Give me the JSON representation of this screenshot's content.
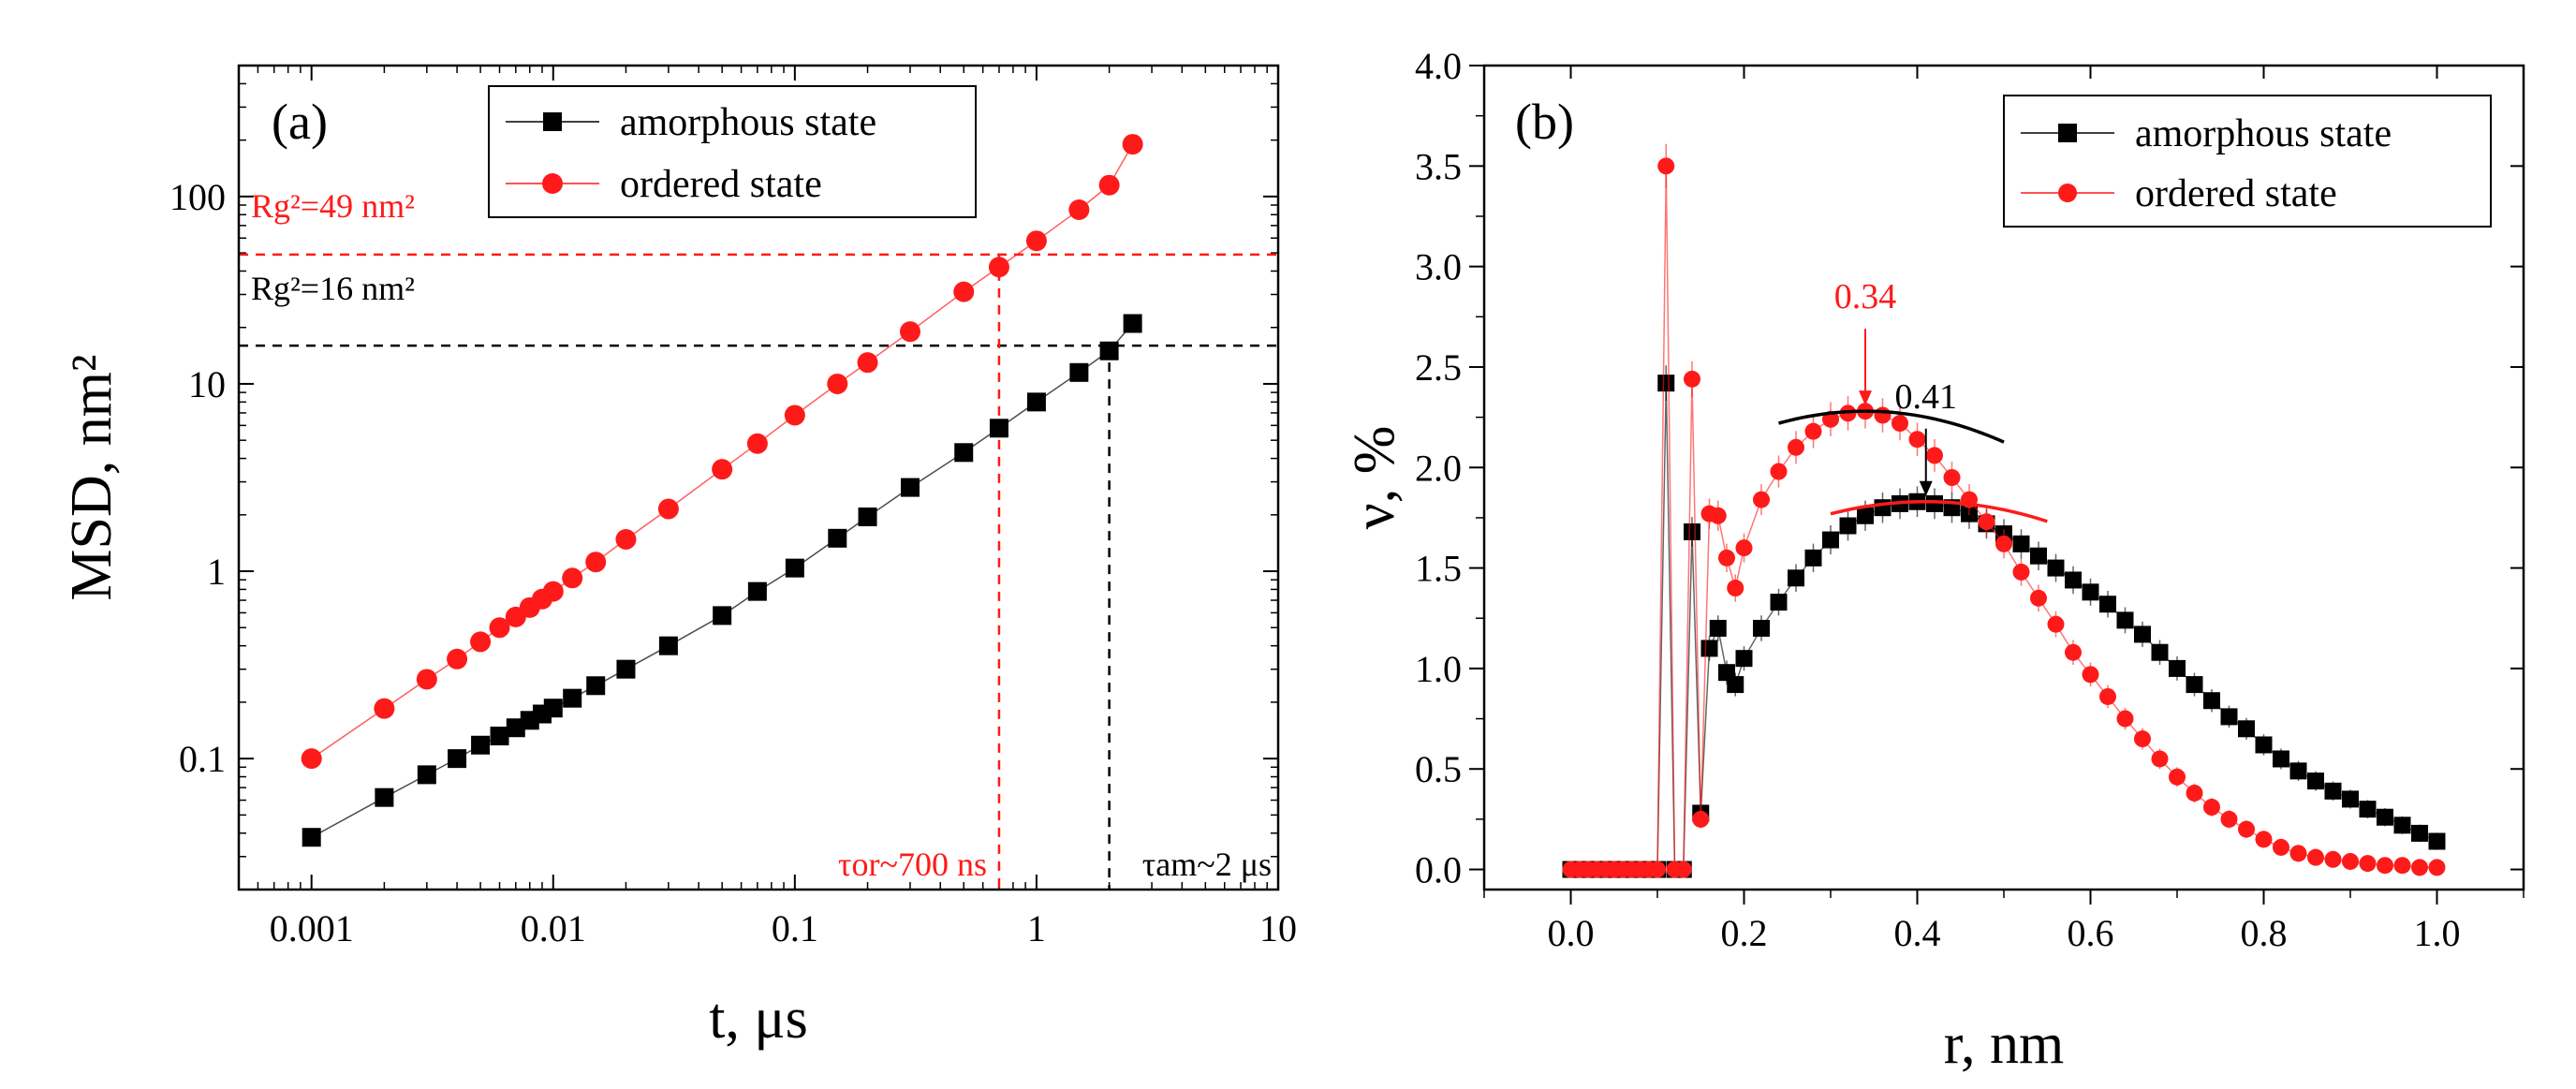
{
  "chart_data": [
    {
      "type": "scatter",
      "panel_label": "(a)",
      "xlabel": "t, μs",
      "ylabel": "MSD, nm²",
      "xscale": "log",
      "yscale": "log",
      "xlim": [
        0.0005,
        10
      ],
      "ylim": [
        0.02,
        500
      ],
      "x_ticks": [
        {
          "value": 0.001,
          "label": "0.001"
        },
        {
          "value": 0.01,
          "label": "0.01"
        },
        {
          "value": 0.1,
          "label": "0.1"
        },
        {
          "value": 1,
          "label": "1"
        },
        {
          "value": 10,
          "label": "10"
        }
      ],
      "y_ticks": [
        {
          "value": 0.1,
          "label": "0.1"
        },
        {
          "value": 1,
          "label": "1"
        },
        {
          "value": 10,
          "label": "10"
        },
        {
          "value": 100,
          "label": "100"
        }
      ],
      "legend_position": "top-right",
      "series": [
        {
          "name": "amorphous state",
          "color": "#000000",
          "marker": "square",
          "x": [
            0.001,
            0.002,
            0.003,
            0.004,
            0.005,
            0.006,
            0.007,
            0.008,
            0.009,
            0.01,
            0.012,
            0.015,
            0.02,
            0.03,
            0.05,
            0.07,
            0.1,
            0.15,
            0.2,
            0.3,
            0.5,
            0.7,
            1.0,
            1.5,
            2.0,
            2.5
          ],
          "y": [
            0.038,
            0.062,
            0.082,
            0.1,
            0.118,
            0.132,
            0.146,
            0.16,
            0.173,
            0.186,
            0.21,
            0.245,
            0.3,
            0.4,
            0.58,
            0.78,
            1.04,
            1.5,
            1.95,
            2.8,
            4.3,
            5.8,
            8.0,
            11.5,
            15.0,
            21.0
          ]
        },
        {
          "name": "ordered state",
          "color": "#ff1a1a",
          "marker": "circle",
          "x": [
            0.001,
            0.002,
            0.003,
            0.004,
            0.005,
            0.006,
            0.007,
            0.008,
            0.009,
            0.01,
            0.012,
            0.015,
            0.02,
            0.03,
            0.05,
            0.07,
            0.1,
            0.15,
            0.2,
            0.3,
            0.5,
            0.7,
            1.0,
            1.5,
            2.0,
            2.5
          ],
          "y": [
            0.1,
            0.185,
            0.265,
            0.34,
            0.42,
            0.5,
            0.57,
            0.64,
            0.71,
            0.78,
            0.92,
            1.12,
            1.48,
            2.15,
            3.5,
            4.8,
            6.8,
            10.0,
            13.0,
            19.0,
            31.0,
            42.0,
            58.0,
            85.0,
            115.0,
            190.0
          ]
        }
      ],
      "reference_lines": [
        {
          "orientation": "horizontal",
          "value": 49,
          "color": "#ff1a1a",
          "label": "Rg²=49 nm²"
        },
        {
          "orientation": "horizontal",
          "value": 16,
          "color": "#000000",
          "label": "Rg²=16 nm²"
        },
        {
          "orientation": "vertical",
          "value": 0.7,
          "color": "#ff1a1a",
          "label": "τor~700 ns"
        },
        {
          "orientation": "vertical",
          "value": 2,
          "color": "#000000",
          "label": "τam~2 μs"
        }
      ]
    },
    {
      "type": "scatter",
      "panel_label": "(b)",
      "xlabel": "r, nm",
      "ylabel": "ν, %",
      "xlim": [
        -0.1,
        1.1
      ],
      "ylim": [
        -0.1,
        4.0
      ],
      "x_ticks": [
        {
          "value": 0.0,
          "label": "0.0"
        },
        {
          "value": 0.2,
          "label": "0.2"
        },
        {
          "value": 0.4,
          "label": "0.4"
        },
        {
          "value": 0.6,
          "label": "0.6"
        },
        {
          "value": 0.8,
          "label": "0.8"
        },
        {
          "value": 1.0,
          "label": "1.0"
        }
      ],
      "y_ticks": [
        {
          "value": 0.0,
          "label": "0.0"
        },
        {
          "value": 0.5,
          "label": "0.5"
        },
        {
          "value": 1.0,
          "label": "1.0"
        },
        {
          "value": 1.5,
          "label": "1.5"
        },
        {
          "value": 2.0,
          "label": "2.0"
        },
        {
          "value": 2.5,
          "label": "2.5"
        },
        {
          "value": 3.0,
          "label": "3.0"
        },
        {
          "value": 3.5,
          "label": "3.5"
        },
        {
          "value": 4.0,
          "label": "4.0"
        }
      ],
      "legend_position": "top-right",
      "series": [
        {
          "name": "amorphous state",
          "color": "#000000",
          "marker": "square",
          "x": [
            0.0,
            0.01,
            0.02,
            0.03,
            0.04,
            0.05,
            0.06,
            0.07,
            0.08,
            0.09,
            0.1,
            0.11,
            0.12,
            0.13,
            0.14,
            0.15,
            0.16,
            0.17,
            0.18,
            0.19,
            0.2,
            0.22,
            0.24,
            0.26,
            0.28,
            0.3,
            0.32,
            0.34,
            0.36,
            0.38,
            0.4,
            0.42,
            0.44,
            0.46,
            0.48,
            0.5,
            0.52,
            0.54,
            0.56,
            0.58,
            0.6,
            0.62,
            0.64,
            0.66,
            0.68,
            0.7,
            0.72,
            0.74,
            0.76,
            0.78,
            0.8,
            0.82,
            0.84,
            0.86,
            0.88,
            0.9,
            0.92,
            0.94,
            0.96,
            0.98,
            1.0
          ],
          "y": [
            0.0,
            0.0,
            0.0,
            0.0,
            0.0,
            0.0,
            0.0,
            0.0,
            0.0,
            0.0,
            0.0,
            2.42,
            0.0,
            0.0,
            1.68,
            0.28,
            1.1,
            1.2,
            0.98,
            0.92,
            1.05,
            1.2,
            1.33,
            1.45,
            1.55,
            1.64,
            1.71,
            1.76,
            1.8,
            1.82,
            1.83,
            1.82,
            1.8,
            1.77,
            1.72,
            1.67,
            1.62,
            1.56,
            1.5,
            1.44,
            1.38,
            1.32,
            1.24,
            1.17,
            1.08,
            1.0,
            0.92,
            0.84,
            0.76,
            0.7,
            0.62,
            0.55,
            0.49,
            0.44,
            0.39,
            0.35,
            0.3,
            0.26,
            0.22,
            0.18,
            0.14
          ]
        },
        {
          "name": "ordered state",
          "color": "#ff1a1a",
          "marker": "circle",
          "x": [
            0.0,
            0.01,
            0.02,
            0.03,
            0.04,
            0.05,
            0.06,
            0.07,
            0.08,
            0.09,
            0.1,
            0.11,
            0.12,
            0.13,
            0.14,
            0.15,
            0.16,
            0.17,
            0.18,
            0.19,
            0.2,
            0.22,
            0.24,
            0.26,
            0.28,
            0.3,
            0.32,
            0.34,
            0.36,
            0.38,
            0.4,
            0.42,
            0.44,
            0.46,
            0.48,
            0.5,
            0.52,
            0.54,
            0.56,
            0.58,
            0.6,
            0.62,
            0.64,
            0.66,
            0.68,
            0.7,
            0.72,
            0.74,
            0.76,
            0.78,
            0.8,
            0.82,
            0.84,
            0.86,
            0.88,
            0.9,
            0.92,
            0.94,
            0.96,
            0.98,
            1.0
          ],
          "y": [
            0.0,
            0.0,
            0.0,
            0.0,
            0.0,
            0.0,
            0.0,
            0.0,
            0.0,
            0.0,
            0.0,
            3.5,
            0.0,
            0.0,
            2.44,
            0.25,
            1.77,
            1.76,
            1.55,
            1.4,
            1.6,
            1.84,
            1.98,
            2.1,
            2.18,
            2.24,
            2.27,
            2.28,
            2.26,
            2.22,
            2.14,
            2.06,
            1.95,
            1.84,
            1.73,
            1.62,
            1.48,
            1.35,
            1.22,
            1.08,
            0.97,
            0.86,
            0.75,
            0.65,
            0.55,
            0.46,
            0.38,
            0.31,
            0.25,
            0.2,
            0.15,
            0.11,
            0.08,
            0.06,
            0.05,
            0.04,
            0.03,
            0.02,
            0.02,
            0.01,
            0.01
          ]
        }
      ],
      "fit_curves": [
        {
          "series": "ordered state",
          "color": "#000000",
          "x_range": [
            0.24,
            0.5
          ],
          "peak_x": 0.34,
          "peak_y": 2.28,
          "curvature": 6.0
        },
        {
          "series": "amorphous state",
          "color": "#ff1a1a",
          "x_range": [
            0.3,
            0.55
          ],
          "peak_x": 0.41,
          "peak_y": 1.83,
          "curvature": 5.0
        }
      ],
      "annotations": [
        {
          "text": "0.34",
          "color": "#ff1a1a",
          "x": 0.34,
          "y": 2.28
        },
        {
          "text": "0.41",
          "color": "#000000",
          "x": 0.41,
          "y": 1.83
        }
      ]
    }
  ]
}
